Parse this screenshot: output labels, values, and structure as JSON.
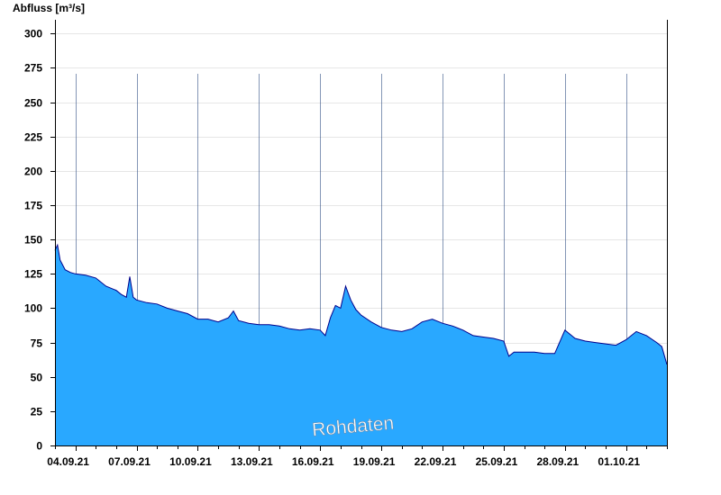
{
  "chart_data": {
    "type": "area",
    "title": "",
    "xlabel": "",
    "ylabel": "Abfluss [m³/s]",
    "ylim": [
      0,
      310
    ],
    "yticks": [
      0,
      25,
      50,
      75,
      100,
      125,
      150,
      175,
      200,
      225,
      250,
      275,
      300
    ],
    "xlim": [
      "2021-09-03",
      "2021-10-03"
    ],
    "xtick_labels": [
      "04.09.21",
      "07.09.21",
      "10.09.21",
      "13.09.21",
      "16.09.21",
      "19.09.21",
      "22.09.21",
      "25.09.21",
      "28.09.21",
      "01.10.21"
    ],
    "xtick_dates": [
      "2021-09-04",
      "2021-09-07",
      "2021-09-10",
      "2021-09-13",
      "2021-09-16",
      "2021-09-19",
      "2021-09-22",
      "2021-09-25",
      "2021-09-28",
      "2021-10-01"
    ],
    "grid": true,
    "legend": "none",
    "watermark": "Rohdaten",
    "colors": {
      "fill": "#29a8ff",
      "line": "#00008b",
      "grid": "#e6e6e6",
      "axis": "#000000"
    },
    "series": [
      {
        "x": [
          "2021-09-03 00:00",
          "2021-09-03 03:00",
          "2021-09-03 06:00",
          "2021-09-03 12:00",
          "2021-09-03 18:00",
          "2021-09-04 00:00",
          "2021-09-04 12:00",
          "2021-09-05 00:00",
          "2021-09-05 12:00",
          "2021-09-06 00:00",
          "2021-09-06 06:00",
          "2021-09-06 12:00",
          "2021-09-06 16:00",
          "2021-09-06 20:00",
          "2021-09-07 00:00",
          "2021-09-07 12:00",
          "2021-09-08 00:00",
          "2021-09-08 12:00",
          "2021-09-09 00:00",
          "2021-09-09 12:00",
          "2021-09-10 00:00",
          "2021-09-10 12:00",
          "2021-09-11 00:00",
          "2021-09-11 12:00",
          "2021-09-11 18:00",
          "2021-09-12 00:00",
          "2021-09-12 12:00",
          "2021-09-13 00:00",
          "2021-09-13 12:00",
          "2021-09-14 00:00",
          "2021-09-14 12:00",
          "2021-09-15 00:00",
          "2021-09-15 12:00",
          "2021-09-16 00:00",
          "2021-09-16 06:00",
          "2021-09-16 12:00",
          "2021-09-16 18:00",
          "2021-09-17 00:00",
          "2021-09-17 06:00",
          "2021-09-17 12:00",
          "2021-09-17 18:00",
          "2021-09-18 00:00",
          "2021-09-18 12:00",
          "2021-09-19 00:00",
          "2021-09-19 12:00",
          "2021-09-20 00:00",
          "2021-09-20 12:00",
          "2021-09-21 00:00",
          "2021-09-21 12:00",
          "2021-09-22 00:00",
          "2021-09-22 12:00",
          "2021-09-23 00:00",
          "2021-09-23 12:00",
          "2021-09-24 00:00",
          "2021-09-24 12:00",
          "2021-09-25 00:00",
          "2021-09-25 06:00",
          "2021-09-25 12:00",
          "2021-09-26 00:00",
          "2021-09-26 12:00",
          "2021-09-27 00:00",
          "2021-09-27 12:00",
          "2021-09-28 00:00",
          "2021-09-28 12:00",
          "2021-09-29 00:00",
          "2021-09-29 12:00",
          "2021-09-30 00:00",
          "2021-09-30 12:00",
          "2021-10-01 00:00",
          "2021-10-01 12:00",
          "2021-10-02 00:00",
          "2021-10-02 12:00",
          "2021-10-02 18:00",
          "2021-10-03 00:00"
        ],
        "values": [
          142,
          146,
          135,
          128,
          126,
          125,
          124,
          122,
          116,
          113,
          110,
          108,
          123,
          108,
          106,
          104,
          103,
          100,
          98,
          96,
          92,
          92,
          90,
          93,
          98,
          91,
          89,
          88,
          88,
          87,
          85,
          84,
          85,
          84,
          80,
          93,
          102,
          100,
          116,
          106,
          99,
          95,
          90,
          86,
          84,
          83,
          85,
          90,
          92,
          89,
          87,
          84,
          80,
          79,
          78,
          76,
          65,
          68,
          68,
          68,
          67,
          67,
          84,
          78,
          76,
          75,
          74,
          73,
          77,
          83,
          80,
          75,
          72,
          59
        ]
      }
    ]
  }
}
